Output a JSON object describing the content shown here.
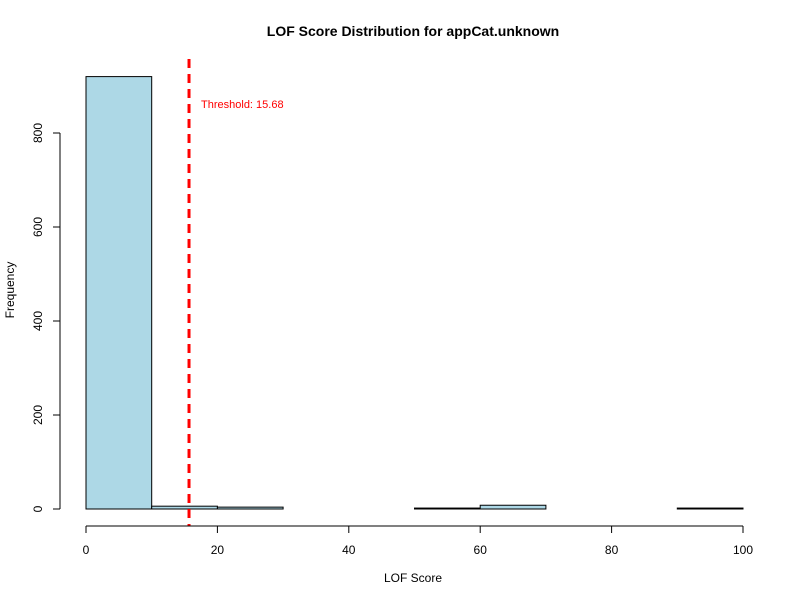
{
  "chart_data": {
    "type": "bar",
    "title": "LOF Score Distribution for appCat.unknown",
    "xlabel": "LOF Score",
    "ylabel": "Frequency",
    "xlim": [
      0,
      100
    ],
    "ylim": [
      0,
      900
    ],
    "x_ticks": [
      0,
      20,
      40,
      60,
      80,
      100
    ],
    "y_ticks": [
      0,
      200,
      400,
      600,
      800
    ],
    "bins": [
      {
        "from": 0,
        "to": 10,
        "count": 920
      },
      {
        "from": 10,
        "to": 20,
        "count": 6
      },
      {
        "from": 20,
        "to": 30,
        "count": 4
      },
      {
        "from": 30,
        "to": 40,
        "count": 0
      },
      {
        "from": 40,
        "to": 50,
        "count": 0
      },
      {
        "from": 50,
        "to": 60,
        "count": 2
      },
      {
        "from": 60,
        "to": 70,
        "count": 8
      },
      {
        "from": 70,
        "to": 80,
        "count": 0
      },
      {
        "from": 80,
        "to": 90,
        "count": 0
      },
      {
        "from": 90,
        "to": 100,
        "count": 2
      }
    ],
    "bar_color": "#add8e6",
    "threshold": {
      "value": 15.68,
      "label": "Threshold: 15.68",
      "color": "#ff0000",
      "style": "dashed"
    },
    "grid": false,
    "legend": "none"
  }
}
